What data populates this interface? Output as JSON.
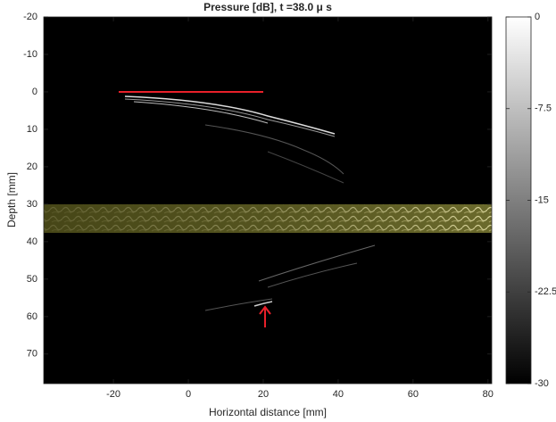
{
  "chart_data": {
    "type": "heatmap",
    "title": "Pressure [dB], t =38.0 μ s",
    "xlabel": "Horizontal distance [mm]",
    "ylabel": "Depth [mm]",
    "xlim": [
      -38.6,
      81
    ],
    "xticks": [
      -20,
      0,
      20,
      40,
      60,
      80
    ],
    "ylim": [
      -20,
      77.9
    ],
    "yticks": [
      -20,
      -10,
      0,
      10,
      20,
      30,
      40,
      50,
      60,
      70
    ],
    "clim": [
      -30,
      0
    ],
    "cticks": [
      0,
      -7.5,
      -15,
      -22.5,
      -30
    ],
    "colormap": [
      "#000000",
      "#ffffff"
    ]
  }
}
